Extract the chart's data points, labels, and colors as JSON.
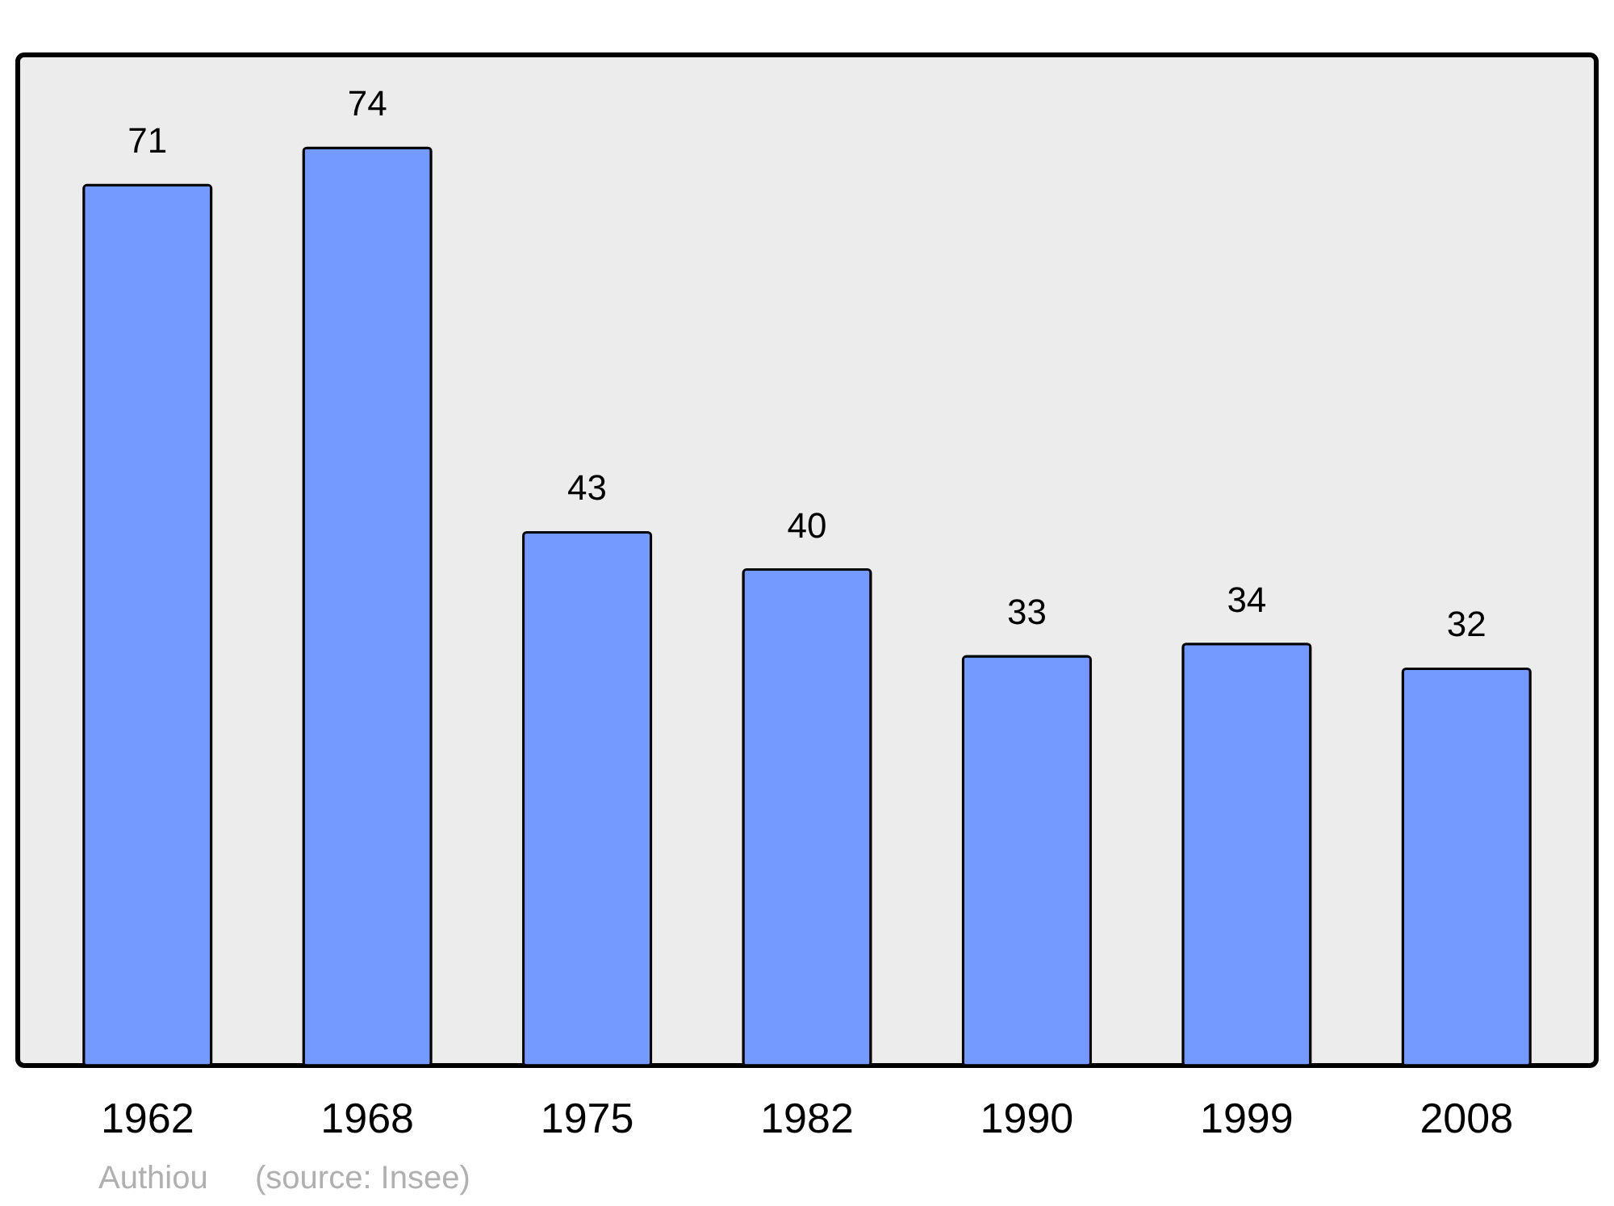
{
  "chart_data": {
    "type": "bar",
    "categories": [
      "1962",
      "1968",
      "1975",
      "1982",
      "1990",
      "1999",
      "2008"
    ],
    "values": [
      71,
      74,
      43,
      40,
      33,
      34,
      32
    ],
    "color": "#7499ff",
    "ylim": [
      0,
      81.5
    ],
    "tick_labels": "x",
    "data_labels": true,
    "grid": false,
    "annotations": [
      "Authiou",
      "(source: Insee)"
    ]
  }
}
